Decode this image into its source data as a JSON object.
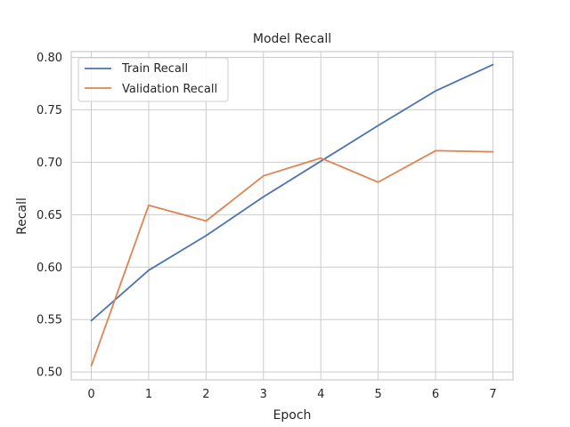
{
  "chart_data": {
    "type": "line",
    "title": "Model Recall",
    "xlabel": "Epoch",
    "ylabel": "Recall",
    "x": [
      0,
      1,
      2,
      3,
      4,
      5,
      6,
      7
    ],
    "xticks": [
      "0",
      "1",
      "2",
      "3",
      "4",
      "5",
      "6",
      "7"
    ],
    "yticks": [
      "0.50",
      "0.55",
      "0.60",
      "0.65",
      "0.70",
      "0.75",
      "0.80"
    ],
    "xlim": [
      -0.35,
      7.35
    ],
    "ylim": [
      0.4925,
      0.8055
    ],
    "grid": true,
    "legend_position": "top-left",
    "series": [
      {
        "name": "Train Recall",
        "color": "#4c72b0",
        "values": [
          0.549,
          0.597,
          0.63,
          0.667,
          0.701,
          0.735,
          0.768,
          0.793
        ]
      },
      {
        "name": "Validation Recall",
        "color": "#dd8452",
        "values": [
          0.506,
          0.659,
          0.644,
          0.687,
          0.704,
          0.681,
          0.711,
          0.71
        ]
      }
    ]
  }
}
